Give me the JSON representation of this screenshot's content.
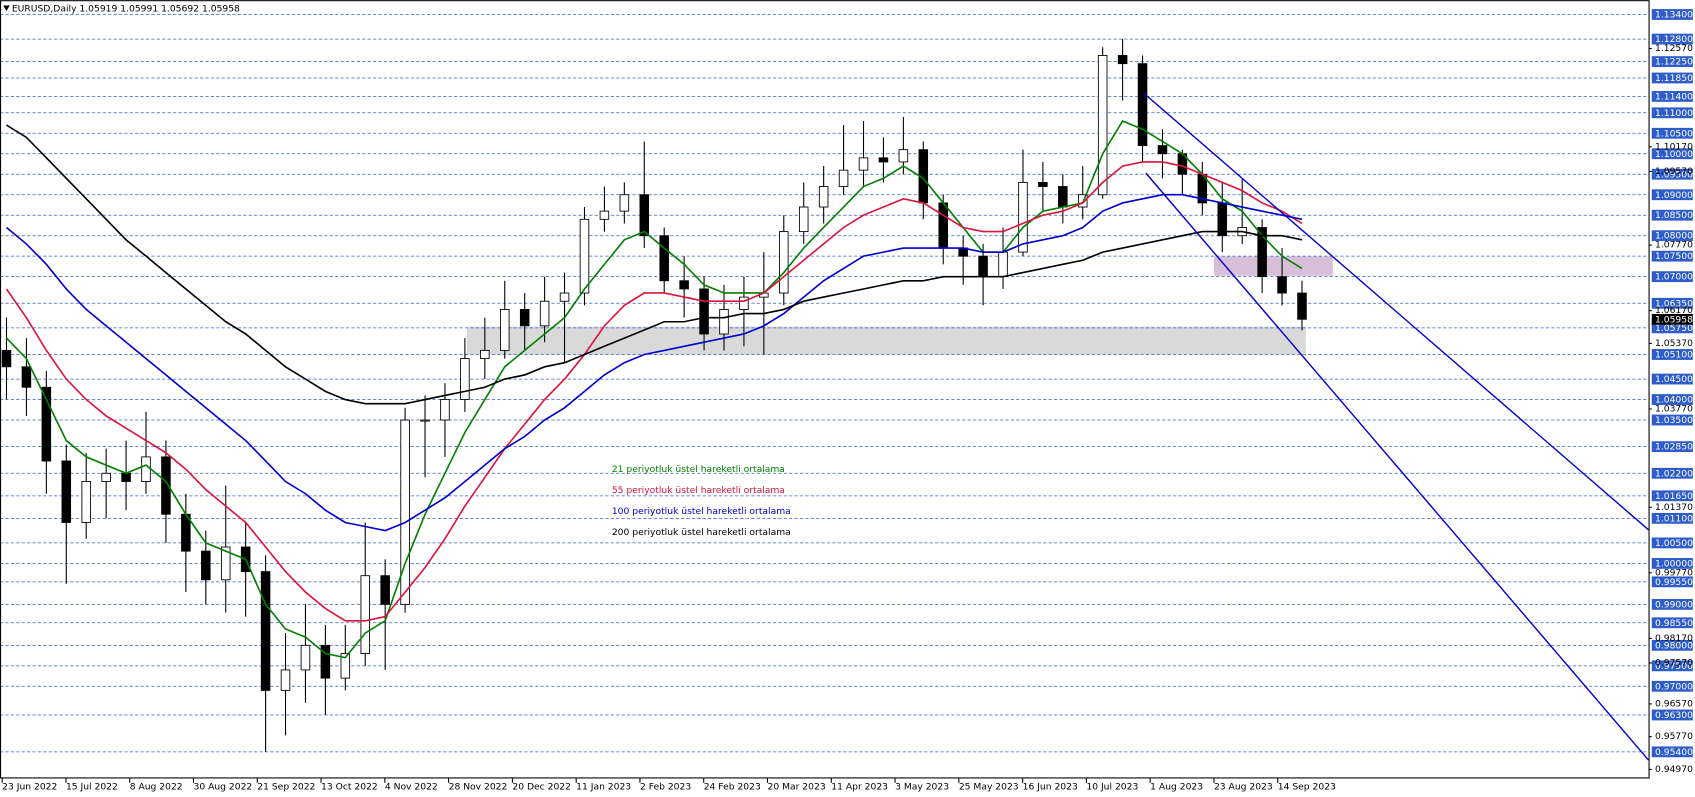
{
  "chart_data": {
    "type": "candlestick",
    "title": "EURUSD,Daily  1.05919 1.05991 1.05692 1.05958",
    "ylim": [
      0.9475,
      1.1375
    ],
    "open": [
      1.052,
      1.048,
      1.043,
      1.025,
      1.01,
      1.02,
      1.022,
      1.02,
      1.026,
      1.012,
      1.003,
      0.996,
      1.004,
      0.998,
      0.969,
      0.974,
      0.98,
      0.972,
      0.978,
      0.997,
      0.99,
      1.035,
      1.035,
      1.04,
      1.05,
      1.052,
      1.062,
      1.058,
      1.064,
      1.066,
      1.084,
      1.086,
      1.09,
      1.08,
      1.069,
      1.067,
      1.056,
      1.062,
      1.065,
      1.066,
      1.081,
      1.087,
      1.092,
      1.096,
      1.099,
      1.098,
      1.101,
      1.088,
      1.077,
      1.075,
      1.07,
      1.076,
      1.093,
      1.092,
      1.087,
      1.09,
      1.124,
      1.122,
      1.102,
      1.1,
      1.095,
      1.088,
      1.08,
      1.082,
      1.07,
      1.066
    ],
    "high": [
      1.06,
      1.055,
      1.047,
      1.029,
      1.027,
      1.028,
      1.03,
      1.037,
      1.03,
      1.017,
      1.008,
      1.019,
      1.01,
      1.002,
      0.983,
      0.99,
      0.985,
      0.985,
      1.01,
      1.001,
      1.038,
      1.041,
      1.044,
      1.055,
      1.06,
      1.069,
      1.066,
      1.07,
      1.071,
      1.087,
      1.092,
      1.093,
      1.103,
      1.082,
      1.075,
      1.07,
      1.068,
      1.07,
      1.076,
      1.085,
      1.093,
      1.097,
      1.107,
      1.108,
      1.104,
      1.109,
      1.103,
      1.09,
      1.08,
      1.078,
      1.082,
      1.101,
      1.098,
      1.095,
      1.097,
      1.126,
      1.128,
      1.124,
      1.106,
      1.101,
      1.098,
      1.093,
      1.094,
      1.084,
      1.077,
      1.069
    ],
    "low": [
      1.04,
      1.036,
      1.017,
      0.995,
      1.006,
      1.011,
      1.013,
      1.017,
      1.005,
      0.993,
      0.99,
      0.988,
      0.987,
      0.954,
      0.958,
      0.966,
      0.963,
      0.969,
      0.975,
      0.974,
      0.988,
      1.021,
      1.026,
      1.037,
      1.045,
      1.05,
      1.052,
      1.054,
      1.049,
      1.063,
      1.081,
      1.083,
      1.077,
      1.066,
      1.06,
      1.052,
      1.052,
      1.053,
      1.051,
      1.063,
      1.078,
      1.083,
      1.09,
      1.092,
      1.093,
      1.095,
      1.084,
      1.073,
      1.068,
      1.063,
      1.067,
      1.075,
      1.086,
      1.083,
      1.084,
      1.089,
      1.113,
      1.098,
      1.094,
      1.09,
      1.085,
      1.076,
      1.078,
      1.066,
      1.063,
      1.0569
    ],
    "close": [
      1.048,
      1.043,
      1.025,
      1.01,
      1.02,
      1.022,
      1.02,
      1.026,
      1.012,
      1.003,
      0.996,
      1.004,
      0.998,
      0.969,
      0.974,
      0.98,
      0.972,
      0.978,
      0.997,
      0.99,
      1.035,
      1.035,
      1.04,
      1.05,
      1.052,
      1.062,
      1.058,
      1.064,
      1.066,
      1.084,
      1.086,
      1.09,
      1.08,
      1.069,
      1.067,
      1.056,
      1.062,
      1.065,
      1.066,
      1.081,
      1.087,
      1.092,
      1.096,
      1.099,
      1.098,
      1.101,
      1.088,
      1.077,
      1.075,
      1.07,
      1.076,
      1.093,
      1.092,
      1.087,
      1.09,
      1.124,
      1.122,
      1.102,
      1.1,
      1.095,
      1.088,
      1.08,
      1.082,
      1.07,
      1.066,
      1.0596
    ],
    "series": [
      {
        "name": "21 periyotluk üstel hareketli ortalama",
        "color": "#008000",
        "values": [
          1.055,
          1.05,
          1.04,
          1.03,
          1.026,
          1.024,
          1.022,
          1.024,
          1.02,
          1.012,
          1.005,
          1.003,
          1.001,
          0.99,
          0.984,
          0.982,
          0.978,
          0.977,
          0.983,
          0.986,
          1.0,
          1.012,
          1.022,
          1.032,
          1.04,
          1.048,
          1.052,
          1.056,
          1.06,
          1.067,
          1.073,
          1.079,
          1.081,
          1.077,
          1.073,
          1.068,
          1.066,
          1.066,
          1.066,
          1.071,
          1.077,
          1.082,
          1.087,
          1.092,
          1.094,
          1.097,
          1.094,
          1.088,
          1.082,
          1.076,
          1.076,
          1.082,
          1.086,
          1.087,
          1.088,
          1.1,
          1.108,
          1.106,
          1.103,
          1.1,
          1.095,
          1.089,
          1.086,
          1.08,
          1.075,
          1.072
        ]
      },
      {
        "name": "55 periyotluk üstel hareketli ortalama",
        "color": "#dc143c",
        "values": [
          1.067,
          1.06,
          1.052,
          1.045,
          1.04,
          1.036,
          1.033,
          1.03,
          1.027,
          1.023,
          1.018,
          1.014,
          1.01,
          1.004,
          0.998,
          0.993,
          0.989,
          0.986,
          0.986,
          0.987,
          0.993,
          0.999,
          1.006,
          1.014,
          1.021,
          1.028,
          1.034,
          1.04,
          1.045,
          1.051,
          1.058,
          1.063,
          1.066,
          1.066,
          1.065,
          1.064,
          1.064,
          1.064,
          1.066,
          1.07,
          1.074,
          1.078,
          1.082,
          1.085,
          1.087,
          1.089,
          1.088,
          1.085,
          1.082,
          1.081,
          1.081,
          1.083,
          1.085,
          1.086,
          1.088,
          1.093,
          1.097,
          1.098,
          1.098,
          1.097,
          1.095,
          1.093,
          1.091,
          1.088,
          1.086,
          1.083
        ]
      },
      {
        "name": "100 periyotluk üstel hareketli ortalama",
        "color": "#0000cd",
        "values": [
          1.082,
          1.078,
          1.073,
          1.067,
          1.062,
          1.058,
          1.054,
          1.05,
          1.046,
          1.042,
          1.038,
          1.034,
          1.03,
          1.025,
          1.02,
          1.017,
          1.013,
          1.01,
          1.009,
          1.008,
          1.01,
          1.013,
          1.016,
          1.02,
          1.024,
          1.028,
          1.031,
          1.035,
          1.038,
          1.042,
          1.046,
          1.049,
          1.051,
          1.052,
          1.053,
          1.054,
          1.055,
          1.056,
          1.058,
          1.061,
          1.065,
          1.069,
          1.072,
          1.075,
          1.076,
          1.077,
          1.077,
          1.077,
          1.077,
          1.076,
          1.076,
          1.078,
          1.079,
          1.08,
          1.082,
          1.086,
          1.088,
          1.089,
          1.09,
          1.09,
          1.089,
          1.088,
          1.087,
          1.086,
          1.085,
          1.084
        ]
      },
      {
        "name": "200 periyotluk üstel hareketli ortalama",
        "color": "#000000",
        "values": [
          1.107,
          1.104,
          1.099,
          1.094,
          1.089,
          1.084,
          1.079,
          1.075,
          1.071,
          1.067,
          1.063,
          1.059,
          1.056,
          1.052,
          1.048,
          1.045,
          1.042,
          1.04,
          1.039,
          1.039,
          1.039,
          1.04,
          1.041,
          1.042,
          1.043,
          1.045,
          1.046,
          1.048,
          1.049,
          1.051,
          1.053,
          1.055,
          1.057,
          1.059,
          1.059,
          1.06,
          1.06,
          1.061,
          1.061,
          1.062,
          1.064,
          1.065,
          1.066,
          1.067,
          1.068,
          1.069,
          1.069,
          1.07,
          1.07,
          1.07,
          1.07,
          1.071,
          1.072,
          1.073,
          1.074,
          1.076,
          1.077,
          1.078,
          1.079,
          1.08,
          1.081,
          1.081,
          1.081,
          1.08,
          1.08,
          1.079
        ]
      }
    ],
    "x_labels": [
      "23 Jun 2022",
      "15 Jul 2022",
      "8 Aug 2022",
      "30 Aug 2022",
      "21 Sep 2022",
      "13 Oct 2022",
      "4 Nov 2022",
      "28 Nov 2022",
      "20 Dec 2022",
      "11 Jan 2023",
      "2 Feb 2023",
      "24 Feb 2023",
      "20 Mar 2023",
      "11 Apr 2023",
      "3 May 2023",
      "25 May 2023",
      "16 Jun 2023",
      "10 Jul 2023",
      "1 Aug 2023",
      "23 Aug 2023",
      "14 Sep 2023"
    ],
    "levels": [
      {
        "value": 1.134,
        "label": "1.13400"
      },
      {
        "value": 1.128,
        "label": "1.12800"
      },
      {
        "value": 1.1225,
        "label": "1.12250"
      },
      {
        "value": 1.1185,
        "label": "1.11850"
      },
      {
        "value": 1.114,
        "label": "1.11400"
      },
      {
        "value": 1.11,
        "label": "1.11000"
      },
      {
        "value": 1.105,
        "label": "1.10500"
      },
      {
        "value": 1.1,
        "label": "1.10000"
      },
      {
        "value": 1.095,
        "label": "1.09500"
      },
      {
        "value": 1.09,
        "label": "1.09000"
      },
      {
        "value": 1.085,
        "label": "1.08500"
      },
      {
        "value": 1.08,
        "label": "1.08000"
      },
      {
        "value": 1.075,
        "label": "1.07500"
      },
      {
        "value": 1.07,
        "label": "1.07000"
      },
      {
        "value": 1.0635,
        "label": "1.06350"
      },
      {
        "value": 1.0575,
        "label": "1.05750"
      },
      {
        "value": 1.051,
        "label": "1.05100"
      },
      {
        "value": 1.045,
        "label": "1.04500"
      },
      {
        "value": 1.04,
        "label": "1.04000"
      },
      {
        "value": 1.035,
        "label": "1.03500"
      },
      {
        "value": 1.0285,
        "label": "1.02850"
      },
      {
        "value": 1.022,
        "label": "1.02200"
      },
      {
        "value": 1.0165,
        "label": "1.01650"
      },
      {
        "value": 1.011,
        "label": "1.01100"
      },
      {
        "value": 1.005,
        "label": "1.00500"
      },
      {
        "value": 1,
        "label": "1.00000"
      },
      {
        "value": 0.9955,
        "label": "0.99550"
      },
      {
        "value": 0.99,
        "label": "0.99000"
      },
      {
        "value": 0.9855,
        "label": "0.98550"
      },
      {
        "value": 0.98,
        "label": "0.98000"
      },
      {
        "value": 0.975,
        "label": "0.97500"
      },
      {
        "value": 0.97,
        "label": "0.97000"
      },
      {
        "value": 0.963,
        "label": "0.96300"
      },
      {
        "value": 0.954,
        "label": "0.95400"
      }
    ],
    "yticks": [
      {
        "value": 1.1257,
        "label": "1.12570"
      },
      {
        "value": 1.1017,
        "label": "1.10170"
      },
      {
        "value": 1.0957,
        "label": "1.09570"
      },
      {
        "value": 1.0777,
        "label": "1.07770"
      },
      {
        "value": 1.0617,
        "label": "1.06170"
      },
      {
        "value": 1.0537,
        "label": "1.05370"
      },
      {
        "value": 1.0377,
        "label": "1.03770"
      },
      {
        "value": 1.0137,
        "label": "1.01370"
      },
      {
        "value": 0.9977,
        "label": "0.99770"
      },
      {
        "value": 0.9817,
        "label": "0.98170"
      },
      {
        "value": 0.9757,
        "label": "0.97570"
      },
      {
        "value": 0.9657,
        "label": "0.96570"
      },
      {
        "value": 0.9577,
        "label": "0.95770"
      },
      {
        "value": 0.9497,
        "label": "0.94970"
      }
    ],
    "last_price": {
      "value": 1.05958,
      "label": "1.05958"
    }
  }
}
